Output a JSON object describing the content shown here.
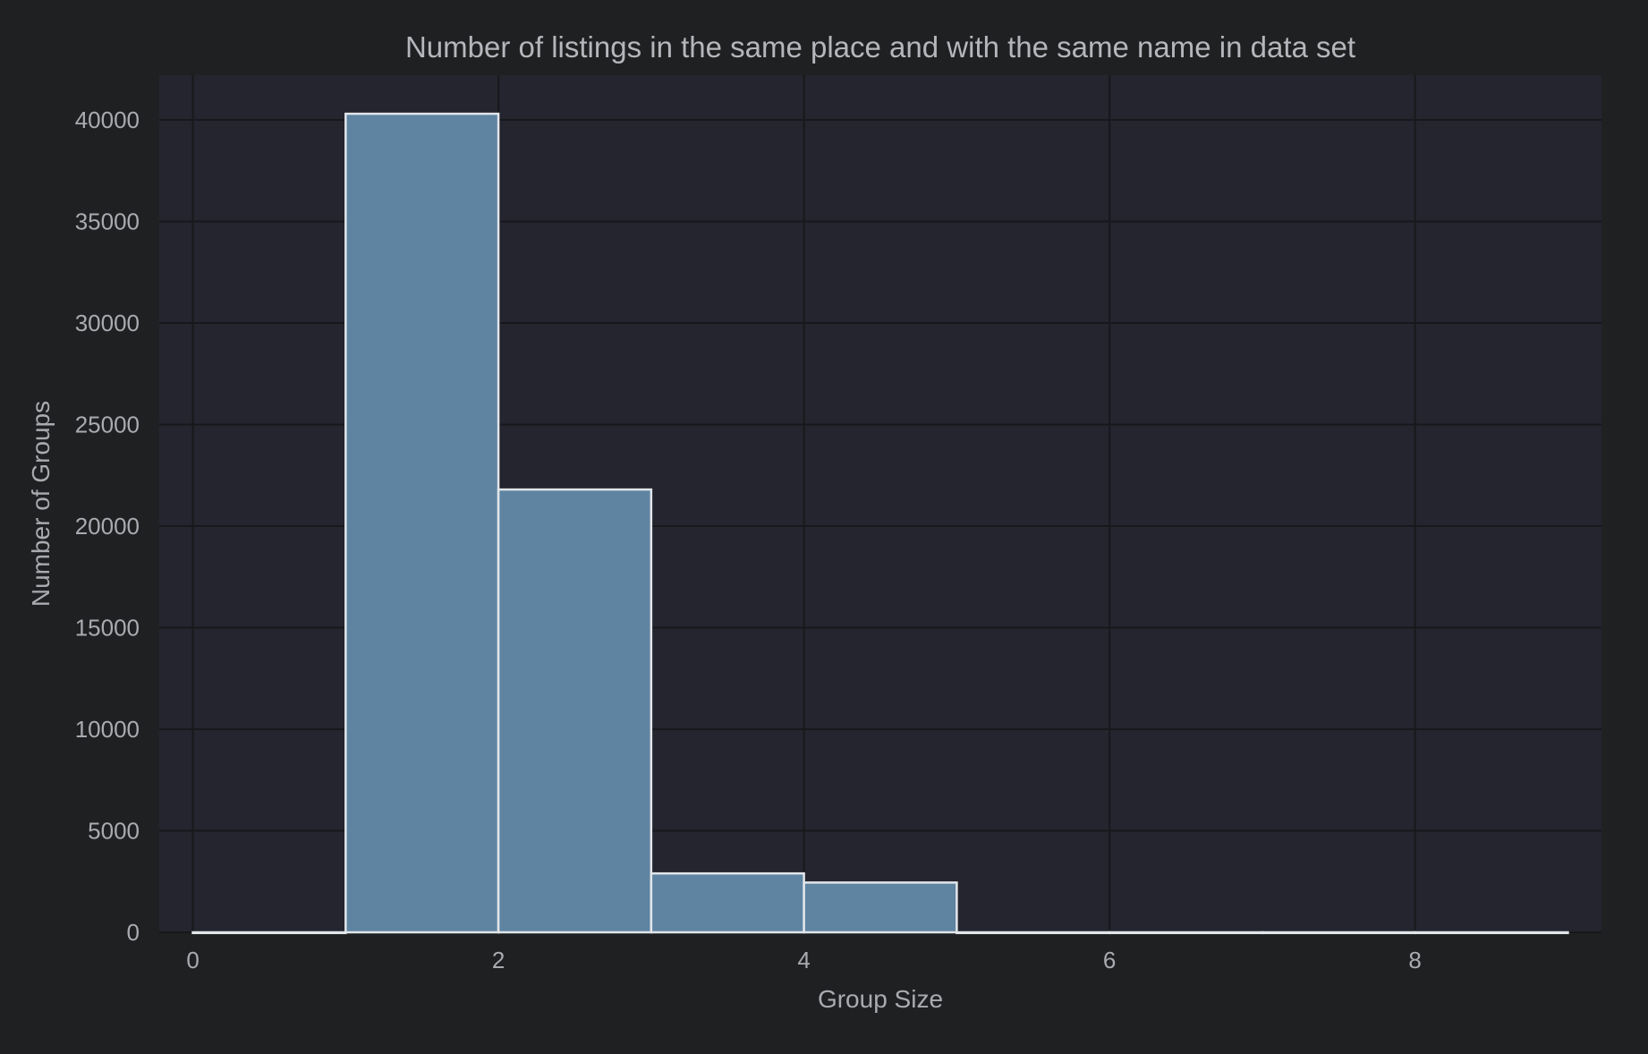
{
  "chart_data": {
    "type": "bar",
    "title": "Number of listings in the same place and with the same name in data set",
    "xlabel": "Group Size",
    "ylabel": "Number of Groups",
    "xlim": [
      -0.22,
      9.22
    ],
    "ylim": [
      0,
      42200
    ],
    "x_ticks": [
      0,
      2,
      4,
      6,
      8
    ],
    "y_ticks": [
      0,
      5000,
      10000,
      15000,
      20000,
      25000,
      30000,
      35000,
      40000
    ],
    "bins": [
      {
        "start": 0,
        "end": 1,
        "value": 0
      },
      {
        "start": 1,
        "end": 2,
        "value": 40300
      },
      {
        "start": 2,
        "end": 3,
        "value": 21800
      },
      {
        "start": 3,
        "end": 4,
        "value": 2900
      },
      {
        "start": 4,
        "end": 5,
        "value": 2450
      },
      {
        "start": 5,
        "end": 6,
        "value": 0
      },
      {
        "start": 6,
        "end": 7,
        "value": 0
      },
      {
        "start": 7,
        "end": 8,
        "value": 0
      },
      {
        "start": 8,
        "end": 9,
        "value": 0
      }
    ],
    "grid": true,
    "colors": {
      "figure_background": "#1f2022",
      "plot_background": "#25252f",
      "bar_fill": "#5f84a2",
      "bar_edge": "#e2e6ea",
      "grid": "#17181b",
      "text": "#a9abb0"
    }
  }
}
